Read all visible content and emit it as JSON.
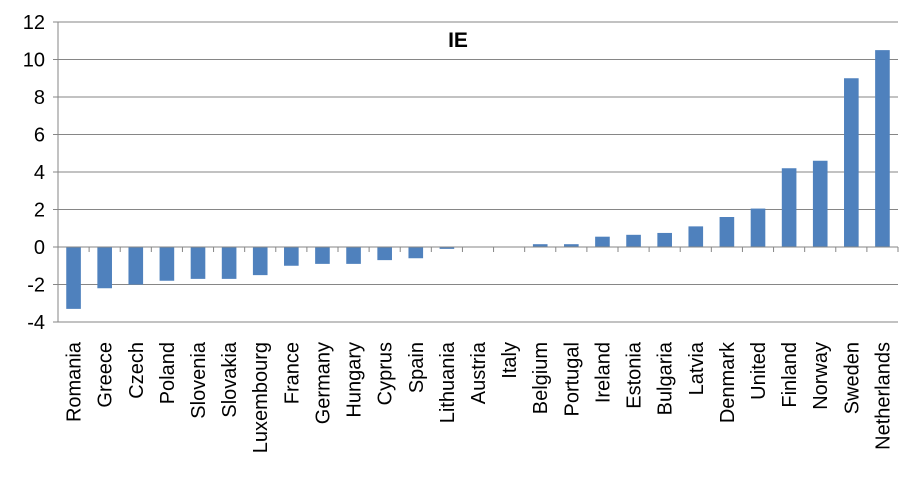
{
  "chart_data": {
    "type": "bar",
    "title": "IE",
    "xlabel": "",
    "ylabel": "",
    "ylim": [
      -4,
      12
    ],
    "yticks": [
      -4,
      -2,
      0,
      2,
      4,
      6,
      8,
      10,
      12
    ],
    "ytick_labels": [
      "-4",
      "-2",
      "0",
      "2",
      "4",
      "6",
      "8",
      "10",
      "12"
    ],
    "grid": true,
    "legend": "none",
    "bar_color": "#4f81bd",
    "categories": [
      "Romania",
      "Greece",
      "Czech",
      "Poland",
      "Slovenia",
      "Slovakia",
      "Luxembourg",
      "France",
      "Germany",
      "Hungary",
      "Cyprus",
      "Spain",
      "Lithuania",
      "Austria",
      "Italy",
      "Belgium",
      "Portugal",
      "Ireland",
      "Estonia",
      "Bulgaria",
      "Latvia",
      "Denmark",
      "United",
      "Finland",
      "Norway",
      "Sweden",
      "Netherlands"
    ],
    "values": [
      -3.3,
      -2.2,
      -2.0,
      -1.8,
      -1.7,
      -1.7,
      -1.5,
      -1.0,
      -0.9,
      -0.9,
      -0.7,
      -0.6,
      -0.1,
      0.0,
      0.0,
      0.15,
      0.15,
      0.55,
      0.65,
      0.75,
      1.1,
      1.6,
      2.05,
      4.2,
      4.6,
      9.0,
      10.5
    ]
  }
}
